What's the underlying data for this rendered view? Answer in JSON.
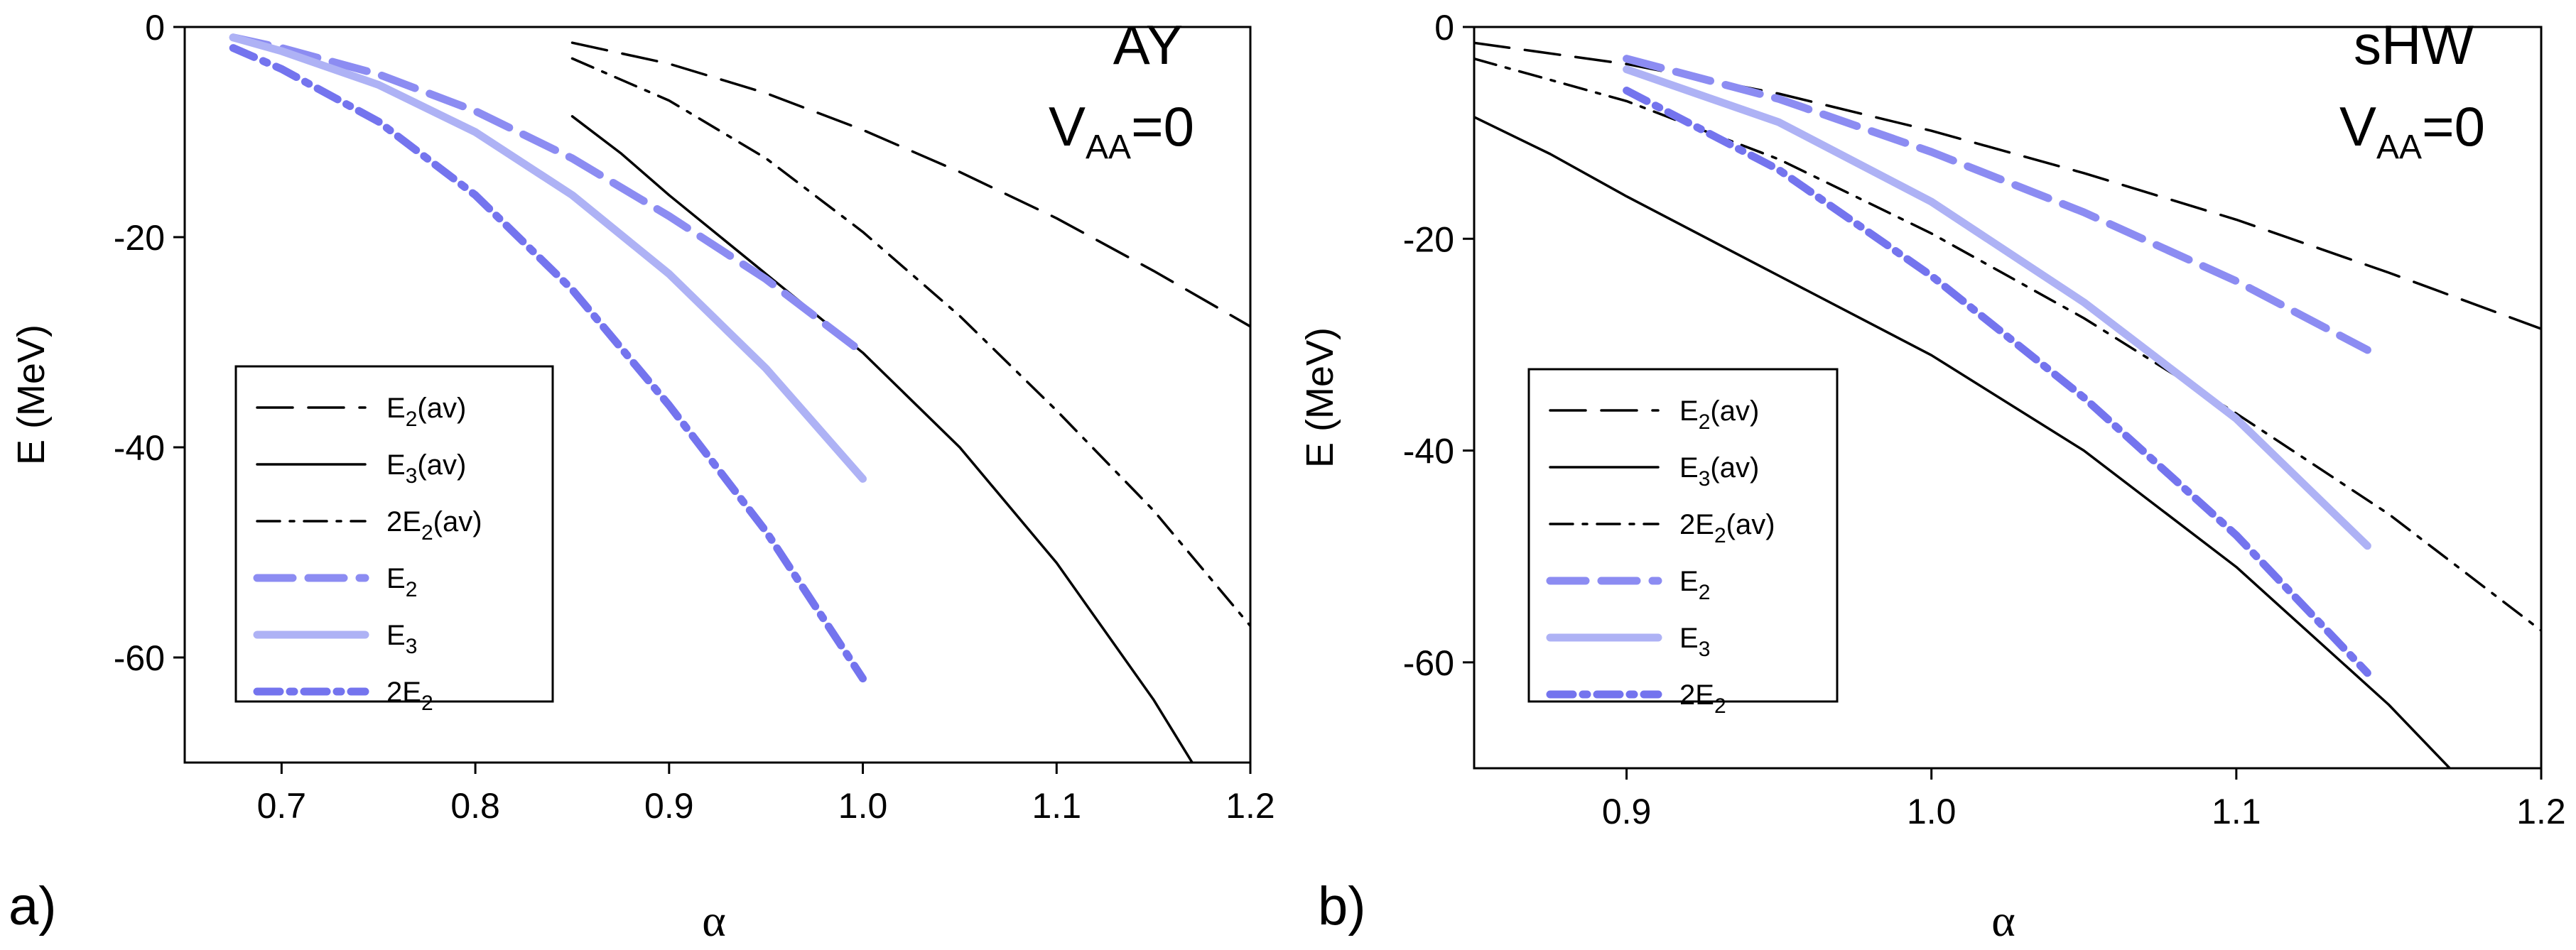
{
  "chart_data": [
    {
      "type": "line",
      "panel_label": "a)",
      "annotation": {
        "line1": "AY",
        "line2_main": "V",
        "line2_sub": "AA",
        "line2_tail": "=0"
      },
      "xlabel": "α",
      "ylabel": "E (MeV)",
      "xlim": [
        0.65,
        1.2
      ],
      "ylim": [
        -70,
        0
      ],
      "xticks": [
        0.7,
        0.8,
        0.9,
        1.0,
        1.1,
        1.2
      ],
      "xtick_labels": [
        "0.7",
        "0.8",
        "0.9",
        "1.0",
        "1.1",
        "1.2"
      ],
      "yticks": [
        0,
        -20,
        -40,
        -60
      ],
      "ytick_labels": [
        "0",
        "-20",
        "-40",
        "-60"
      ],
      "legend_position": "bottom-left",
      "series": [
        {
          "name": "E2(av)",
          "label_main": "E",
          "label_sub": "2",
          "label_tail": "(av)",
          "color": "#000000",
          "style": "dash",
          "x": [
            0.85,
            0.9,
            0.95,
            1.0,
            1.05,
            1.1,
            1.15,
            1.2
          ],
          "y": [
            -1.5,
            -3.5,
            -6.3,
            -9.8,
            -13.8,
            -18.2,
            -23.2,
            -28.5
          ]
        },
        {
          "name": "E3(av)",
          "label_main": "E",
          "label_sub": "3",
          "label_tail": "(av)",
          "color": "#000000",
          "style": "solid",
          "x": [
            0.85,
            0.875,
            0.9,
            0.95,
            1.0,
            1.05,
            1.1,
            1.15,
            1.17
          ],
          "y": [
            -8.5,
            -12.0,
            -16.0,
            -23.5,
            -31.0,
            -40.0,
            -51.0,
            -64.0,
            -70.0
          ]
        },
        {
          "name": "2E2(av)",
          "label_main": "2E",
          "label_sub": "2",
          "label_tail": "(av)",
          "color": "#000000",
          "style": "dashdot",
          "x": [
            0.85,
            0.9,
            0.95,
            1.0,
            1.05,
            1.1,
            1.15,
            1.2
          ],
          "y": [
            -3.0,
            -7.0,
            -12.5,
            -19.5,
            -27.5,
            -36.5,
            -46.0,
            -57.0
          ]
        },
        {
          "name": "E2",
          "label_main": "E",
          "label_sub": "2",
          "label_tail": "",
          "color": "#8c8cf2",
          "style": "dash",
          "x": [
            0.675,
            0.7,
            0.75,
            0.8,
            0.85,
            0.9,
            0.95,
            1.0
          ],
          "y": [
            -1.0,
            -2.0,
            -4.5,
            -8.0,
            -12.5,
            -18.0,
            -24.0,
            -31.0
          ]
        },
        {
          "name": "E3",
          "label_main": "E",
          "label_sub": "3",
          "label_tail": "",
          "color": "#aeb2f5",
          "style": "solid",
          "x": [
            0.675,
            0.7,
            0.75,
            0.8,
            0.85,
            0.9,
            0.95,
            1.0
          ],
          "y": [
            -1.0,
            -2.3,
            -5.5,
            -10.0,
            -16.0,
            -23.5,
            -32.5,
            -43.0
          ]
        },
        {
          "name": "2E2",
          "label_main": "2E",
          "label_sub": "2",
          "label_tail": "",
          "color": "#7474ee",
          "style": "dashdot",
          "x": [
            0.675,
            0.7,
            0.75,
            0.8,
            0.85,
            0.9,
            0.95,
            1.0
          ],
          "y": [
            -2.0,
            -4.0,
            -9.0,
            -16.0,
            -25.0,
            -36.0,
            -48.0,
            -62.0
          ]
        }
      ]
    },
    {
      "type": "line",
      "panel_label": "b)",
      "annotation": {
        "line1": "sHW",
        "line2_main": "V",
        "line2_sub": "AA",
        "line2_tail": "=0"
      },
      "xlabel": "α",
      "ylabel": "E (MeV)",
      "xlim": [
        0.85,
        1.2
      ],
      "ylim": [
        -70,
        0
      ],
      "xticks": [
        0.9,
        1.0,
        1.1,
        1.2
      ],
      "xtick_labels": [
        "0.9",
        "1.0",
        "1.1",
        "1.2"
      ],
      "yticks": [
        0,
        -20,
        -40,
        -60
      ],
      "ytick_labels": [
        "0",
        "-20",
        "-40",
        "-60"
      ],
      "legend_position": "bottom-left",
      "series": [
        {
          "name": "E2(av)",
          "label_main": "E",
          "label_sub": "2",
          "label_tail": "(av)",
          "color": "#000000",
          "style": "dash",
          "x": [
            0.85,
            0.9,
            0.95,
            1.0,
            1.05,
            1.1,
            1.15,
            1.2
          ],
          "y": [
            -1.5,
            -3.5,
            -6.3,
            -9.8,
            -13.8,
            -18.2,
            -23.2,
            -28.5
          ]
        },
        {
          "name": "E3(av)",
          "label_main": "E",
          "label_sub": "3",
          "label_tail": "(av)",
          "color": "#000000",
          "style": "solid",
          "x": [
            0.85,
            0.875,
            0.9,
            0.95,
            1.0,
            1.05,
            1.1,
            1.15,
            1.17
          ],
          "y": [
            -8.5,
            -12.0,
            -16.0,
            -23.5,
            -31.0,
            -40.0,
            -51.0,
            -64.0,
            -70.0
          ]
        },
        {
          "name": "2E2(av)",
          "label_main": "2E",
          "label_sub": "2",
          "label_tail": "(av)",
          "color": "#000000",
          "style": "dashdot",
          "x": [
            0.85,
            0.9,
            0.95,
            1.0,
            1.05,
            1.1,
            1.15,
            1.2
          ],
          "y": [
            -3.0,
            -7.0,
            -12.5,
            -19.5,
            -27.5,
            -36.5,
            -46.0,
            -57.0
          ]
        },
        {
          "name": "E2",
          "label_main": "E",
          "label_sub": "2",
          "label_tail": "",
          "color": "#8c8cf2",
          "style": "dash",
          "x": [
            0.9,
            0.95,
            1.0,
            1.05,
            1.1,
            1.143
          ],
          "y": [
            -3.0,
            -6.8,
            -11.8,
            -17.5,
            -24.0,
            -30.5
          ]
        },
        {
          "name": "E3",
          "label_main": "E",
          "label_sub": "3",
          "label_tail": "",
          "color": "#aeb2f5",
          "style": "solid",
          "x": [
            0.9,
            0.95,
            1.0,
            1.05,
            1.1,
            1.143
          ],
          "y": [
            -4.0,
            -9.0,
            -16.5,
            -26.0,
            -37.0,
            -49.0
          ]
        },
        {
          "name": "2E2",
          "label_main": "2E",
          "label_sub": "2",
          "label_tail": "",
          "color": "#7474ee",
          "style": "dashdot",
          "x": [
            0.9,
            0.95,
            1.0,
            1.05,
            1.1,
            1.143
          ],
          "y": [
            -6.0,
            -13.5,
            -23.5,
            -35.0,
            -48.0,
            -61.0
          ]
        }
      ]
    }
  ]
}
